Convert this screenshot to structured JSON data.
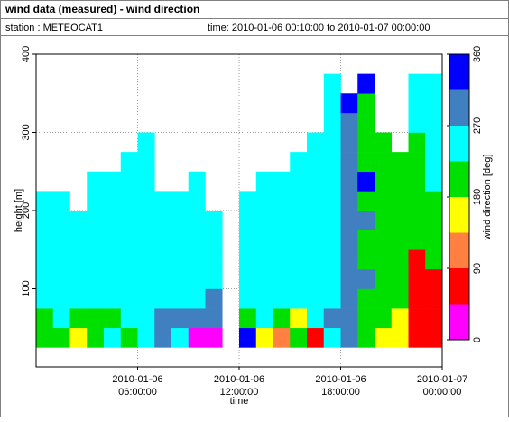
{
  "chart_data": {
    "type": "heatmap",
    "title": "wind data (measured) - wind direction",
    "station": "station : METEOCAT1",
    "period": "time: 2010-01-06 00:10:00 to 2010-01-07 00:00:00",
    "xlabel": "time",
    "ylabel": "height [m]",
    "xlim": [
      0,
      24
    ],
    "xticks": [
      {
        "value": 6,
        "label": [
          "2010-01-06",
          "06:00:00"
        ]
      },
      {
        "value": 12,
        "label": [
          "2010-01-06",
          "12:00:00"
        ]
      },
      {
        "value": 18,
        "label": [
          "2010-01-06",
          "18:00:00"
        ]
      },
      {
        "value": 24,
        "label": [
          "2010-01-07",
          "00:00:00"
        ]
      }
    ],
    "ylim": [
      0,
      400
    ],
    "yticks": [
      100,
      200,
      300,
      400
    ],
    "grid": true,
    "x": [
      0,
      1,
      2,
      3,
      4,
      5,
      6,
      7,
      8,
      9,
      10,
      11,
      12,
      13,
      14,
      15,
      16,
      17,
      18,
      19,
      20,
      21,
      22,
      23
    ],
    "y": [
      25,
      50,
      75,
      100,
      125,
      150,
      175,
      200,
      225,
      250,
      275,
      300,
      325,
      350
    ],
    "values": [
      [
        200,
        200,
        250,
        250,
        250,
        250,
        250,
        250,
        null,
        null,
        null,
        null,
        null,
        null
      ],
      [
        200,
        250,
        250,
        250,
        250,
        250,
        250,
        250,
        null,
        null,
        null,
        null,
        null,
        null
      ],
      [
        160,
        200,
        250,
        250,
        250,
        250,
        250,
        null,
        null,
        null,
        null,
        null,
        null,
        null
      ],
      [
        200,
        200,
        250,
        250,
        250,
        250,
        250,
        250,
        250,
        null,
        null,
        null,
        null,
        null
      ],
      [
        250,
        200,
        250,
        250,
        250,
        250,
        250,
        250,
        250,
        null,
        null,
        null,
        null,
        null
      ],
      [
        200,
        250,
        250,
        250,
        250,
        250,
        250,
        250,
        250,
        250,
        null,
        null,
        null,
        null
      ],
      [
        250,
        250,
        250,
        250,
        250,
        250,
        250,
        250,
        250,
        250,
        250,
        null,
        null,
        null
      ],
      [
        290,
        290,
        250,
        250,
        250,
        250,
        250,
        250,
        null,
        null,
        null,
        null,
        null,
        null
      ],
      [
        250,
        290,
        250,
        250,
        250,
        250,
        250,
        250,
        null,
        null,
        null,
        null,
        null,
        null
      ],
      [
        20,
        290,
        250,
        250,
        250,
        250,
        250,
        250,
        250,
        null,
        null,
        null,
        null,
        null
      ],
      [
        20,
        290,
        290,
        250,
        250,
        250,
        250,
        null,
        null,
        null,
        null,
        null,
        null,
        null
      ],
      [
        null,
        null,
        null,
        null,
        null,
        null,
        null,
        null,
        null,
        null,
        null,
        null,
        null,
        null
      ],
      [
        330,
        200,
        250,
        250,
        250,
        250,
        250,
        250,
        null,
        null,
        null,
        null,
        null,
        null
      ],
      [
        160,
        250,
        250,
        250,
        250,
        250,
        250,
        250,
        250,
        null,
        null,
        null,
        null,
        null
      ],
      [
        110,
        200,
        250,
        250,
        250,
        250,
        250,
        250,
        250,
        null,
        null,
        null,
        null,
        null
      ],
      [
        200,
        160,
        250,
        250,
        250,
        250,
        250,
        250,
        250,
        250,
        null,
        null,
        null,
        null
      ],
      [
        70,
        250,
        250,
        250,
        250,
        250,
        250,
        250,
        250,
        250,
        250,
        null,
        null,
        null
      ],
      [
        250,
        290,
        250,
        250,
        250,
        250,
        250,
        250,
        250,
        250,
        250,
        250,
        250,
        250
      ],
      [
        290,
        290,
        290,
        290,
        290,
        290,
        290,
        290,
        290,
        290,
        290,
        290,
        330,
        null
      ],
      [
        200,
        200,
        200,
        290,
        200,
        200,
        290,
        200,
        330,
        200,
        200,
        200,
        200,
        330
      ],
      [
        160,
        200,
        200,
        200,
        200,
        200,
        200,
        200,
        200,
        200,
        200,
        null,
        null,
        null
      ],
      [
        160,
        160,
        200,
        200,
        200,
        200,
        200,
        200,
        200,
        200,
        null,
        null,
        null,
        null
      ],
      [
        70,
        70,
        70,
        70,
        70,
        200,
        200,
        200,
        200,
        200,
        200,
        250,
        250,
        250
      ],
      [
        70,
        70,
        70,
        70,
        200,
        200,
        200,
        200,
        250,
        250,
        250,
        250,
        250,
        250
      ]
    ],
    "colorbar": {
      "label": "wind direction [deg]",
      "lim": [
        0,
        360
      ],
      "ticks": [
        0,
        90,
        180,
        270,
        360
      ],
      "bounds": [
        0,
        45,
        90,
        135,
        180,
        225,
        270,
        315,
        360
      ],
      "colors": [
        "#ff00ff",
        "#ff0000",
        "#ff8040",
        "#ffff00",
        "#00e000",
        "#00ffff",
        "#4080c0",
        "#0000ff"
      ]
    }
  }
}
